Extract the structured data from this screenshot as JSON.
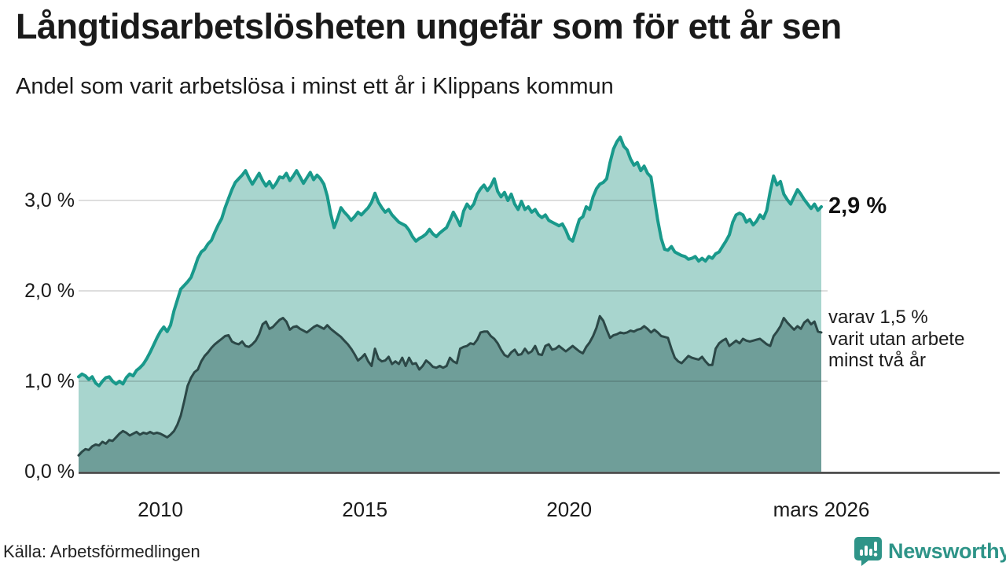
{
  "header": {
    "title": "Långtidsarbetslösheten ungefär som för ett år sen",
    "subtitle": "Andel som varit arbetslösa i minst ett år i Klippans kommun"
  },
  "chart_data": {
    "type": "area",
    "title": "Långtidsarbetslösheten ungefär som för ett år sen",
    "subtitle": "Andel som varit arbetslösa i minst ett år i Klippans kommun",
    "unit": "%",
    "x_start": "2008-01",
    "x_end": "2026-03",
    "months_total": 219,
    "ylim": [
      0,
      3.7
    ],
    "grid": "horizontal",
    "grid_color_overlay": "rgba(0,0,0,0.13)",
    "baseline_color": "#3b3b3b",
    "y_ticks": [
      {
        "label": "0,0 %",
        "value": 0
      },
      {
        "label": "1,0 %",
        "value": 1
      },
      {
        "label": "2,0 %",
        "value": 2
      },
      {
        "label": "3,0 %",
        "value": 3
      }
    ],
    "x_ticks": [
      {
        "label": "2010",
        "month": 24
      },
      {
        "label": "2015",
        "month": 84
      },
      {
        "label": "2020",
        "month": 144
      },
      {
        "label": "mars 2026",
        "month": 218
      }
    ],
    "series": [
      {
        "name": "Arbetslösa minst ett år",
        "line_color": "#19998b",
        "fill_color": "#a8d5ce",
        "line_width": 4,
        "values": [
          1.05,
          1.08,
          1.06,
          1.02,
          1.05,
          0.98,
          0.95,
          1.0,
          1.04,
          1.05,
          1.0,
          0.97,
          1.0,
          0.97,
          1.04,
          1.08,
          1.06,
          1.12,
          1.15,
          1.19,
          1.25,
          1.32,
          1.4,
          1.48,
          1.55,
          1.6,
          1.55,
          1.62,
          1.78,
          1.9,
          2.02,
          2.06,
          2.1,
          2.15,
          2.25,
          2.36,
          2.43,
          2.46,
          2.52,
          2.56,
          2.65,
          2.73,
          2.8,
          2.92,
          3.02,
          3.12,
          3.2,
          3.24,
          3.28,
          3.33,
          3.25,
          3.18,
          3.24,
          3.3,
          3.22,
          3.16,
          3.21,
          3.14,
          3.19,
          3.26,
          3.25,
          3.3,
          3.22,
          3.27,
          3.33,
          3.26,
          3.19,
          3.25,
          3.31,
          3.23,
          3.28,
          3.24,
          3.18,
          3.05,
          2.85,
          2.7,
          2.8,
          2.92,
          2.87,
          2.83,
          2.78,
          2.82,
          2.87,
          2.84,
          2.88,
          2.92,
          2.98,
          3.08,
          2.98,
          2.92,
          2.87,
          2.9,
          2.84,
          2.8,
          2.76,
          2.74,
          2.72,
          2.67,
          2.6,
          2.55,
          2.58,
          2.6,
          2.63,
          2.68,
          2.63,
          2.6,
          2.64,
          2.67,
          2.7,
          2.78,
          2.87,
          2.8,
          2.72,
          2.88,
          2.96,
          2.91,
          2.96,
          3.07,
          3.13,
          3.17,
          3.11,
          3.16,
          3.24,
          3.1,
          3.04,
          3.09,
          3.0,
          3.07,
          2.96,
          2.9,
          2.99,
          2.9,
          2.93,
          2.87,
          2.9,
          2.84,
          2.81,
          2.84,
          2.78,
          2.76,
          2.74,
          2.72,
          2.74,
          2.67,
          2.58,
          2.55,
          2.67,
          2.79,
          2.82,
          2.93,
          2.9,
          3.04,
          3.13,
          3.18,
          3.2,
          3.24,
          3.42,
          3.57,
          3.65,
          3.7,
          3.6,
          3.56,
          3.46,
          3.39,
          3.42,
          3.33,
          3.38,
          3.3,
          3.26,
          3.02,
          2.78,
          2.58,
          2.46,
          2.45,
          2.49,
          2.43,
          2.41,
          2.39,
          2.38,
          2.35,
          2.36,
          2.38,
          2.33,
          2.36,
          2.33,
          2.38,
          2.36,
          2.41,
          2.43,
          2.49,
          2.55,
          2.62,
          2.76,
          2.84,
          2.86,
          2.84,
          2.76,
          2.79,
          2.73,
          2.77,
          2.84,
          2.8,
          2.89,
          3.1,
          3.27,
          3.17,
          3.21,
          3.07,
          3.01,
          2.96,
          3.04,
          3.12,
          3.07,
          3.01,
          2.96,
          2.91,
          2.96,
          2.89,
          2.93
        ]
      },
      {
        "name": "Arbetslösa minst två år",
        "line_color": "#2c4847",
        "fill_color": "#6f9e99",
        "line_width": 3,
        "values": [
          0.18,
          0.22,
          0.25,
          0.24,
          0.28,
          0.3,
          0.29,
          0.33,
          0.31,
          0.35,
          0.34,
          0.38,
          0.42,
          0.45,
          0.43,
          0.4,
          0.42,
          0.44,
          0.41,
          0.43,
          0.42,
          0.44,
          0.42,
          0.43,
          0.42,
          0.4,
          0.38,
          0.41,
          0.45,
          0.52,
          0.62,
          0.78,
          0.95,
          1.04,
          1.1,
          1.13,
          1.22,
          1.28,
          1.32,
          1.37,
          1.41,
          1.44,
          1.47,
          1.5,
          1.51,
          1.44,
          1.42,
          1.41,
          1.44,
          1.39,
          1.38,
          1.41,
          1.45,
          1.52,
          1.63,
          1.66,
          1.58,
          1.6,
          1.64,
          1.68,
          1.7,
          1.66,
          1.57,
          1.6,
          1.61,
          1.58,
          1.56,
          1.54,
          1.57,
          1.6,
          1.62,
          1.6,
          1.58,
          1.62,
          1.58,
          1.55,
          1.52,
          1.49,
          1.45,
          1.41,
          1.36,
          1.3,
          1.23,
          1.26,
          1.3,
          1.22,
          1.17,
          1.36,
          1.25,
          1.22,
          1.23,
          1.27,
          1.19,
          1.22,
          1.19,
          1.26,
          1.17,
          1.26,
          1.19,
          1.2,
          1.13,
          1.17,
          1.23,
          1.2,
          1.16,
          1.15,
          1.17,
          1.15,
          1.17,
          1.26,
          1.22,
          1.2,
          1.36,
          1.38,
          1.39,
          1.42,
          1.41,
          1.46,
          1.54,
          1.55,
          1.55,
          1.5,
          1.47,
          1.42,
          1.35,
          1.29,
          1.27,
          1.32,
          1.35,
          1.29,
          1.3,
          1.36,
          1.31,
          1.33,
          1.39,
          1.3,
          1.29,
          1.39,
          1.41,
          1.35,
          1.36,
          1.39,
          1.36,
          1.33,
          1.36,
          1.39,
          1.36,
          1.33,
          1.31,
          1.38,
          1.43,
          1.5,
          1.59,
          1.72,
          1.67,
          1.57,
          1.48,
          1.51,
          1.52,
          1.54,
          1.53,
          1.54,
          1.56,
          1.55,
          1.57,
          1.58,
          1.61,
          1.58,
          1.54,
          1.57,
          1.54,
          1.5,
          1.49,
          1.48,
          1.36,
          1.26,
          1.22,
          1.2,
          1.24,
          1.28,
          1.26,
          1.25,
          1.24,
          1.27,
          1.22,
          1.18,
          1.18,
          1.36,
          1.42,
          1.45,
          1.47,
          1.39,
          1.42,
          1.45,
          1.42,
          1.47,
          1.45,
          1.44,
          1.45,
          1.46,
          1.47,
          1.44,
          1.41,
          1.39,
          1.5,
          1.55,
          1.61,
          1.7,
          1.65,
          1.61,
          1.57,
          1.61,
          1.58,
          1.65,
          1.68,
          1.63,
          1.66,
          1.55,
          1.54
        ]
      }
    ],
    "end_labels": {
      "primary": "2,9 %",
      "secondary": [
        "varav 1,5 %",
        "varit utan arbete",
        "minst två år"
      ]
    }
  },
  "footer": {
    "source": "Källa: Arbetsförmedlingen",
    "logo_text": "Newsworthy",
    "logo_color": "#2e9488"
  }
}
